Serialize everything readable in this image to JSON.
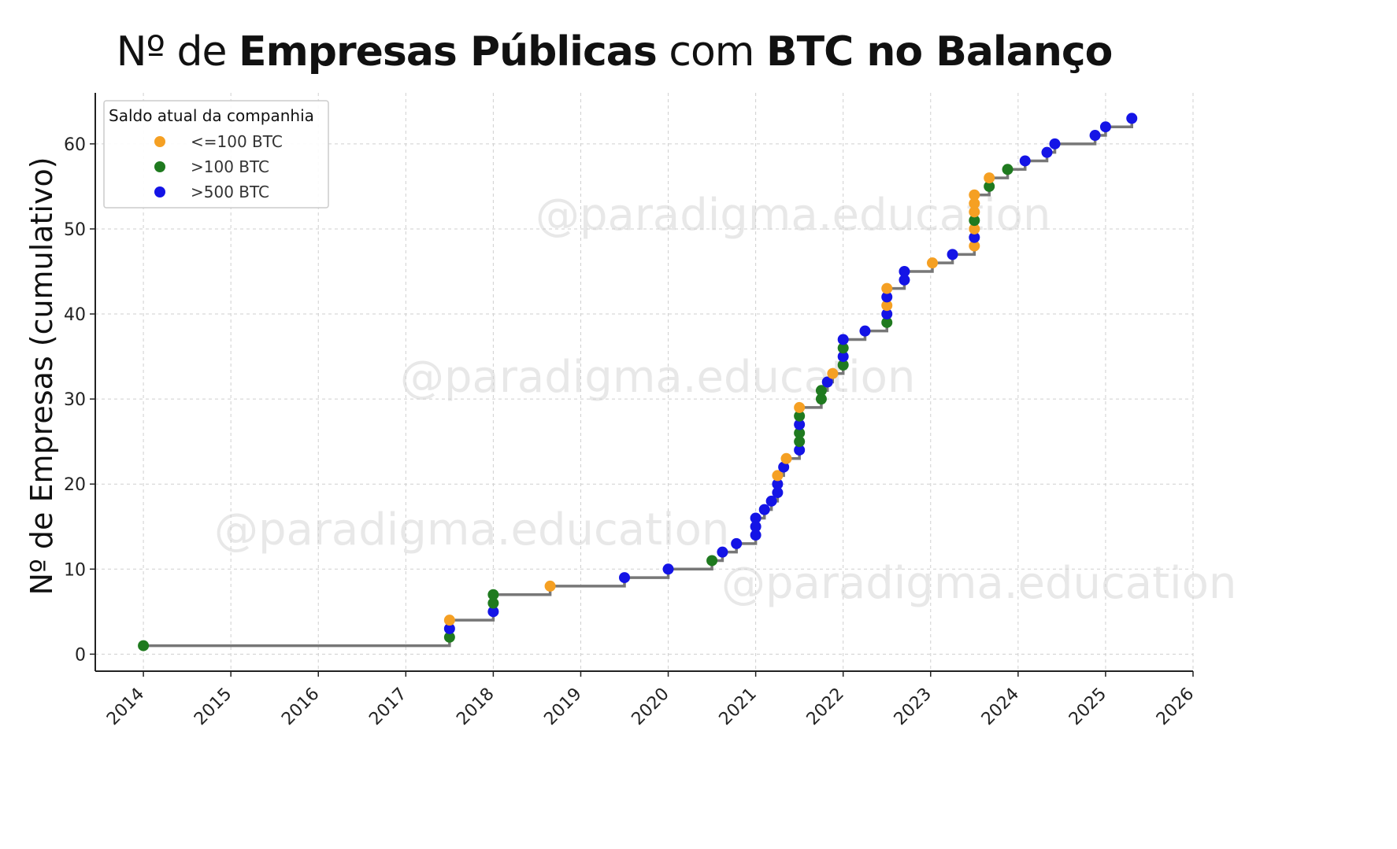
{
  "title": {
    "part1": "Nº de ",
    "part2": "Empresas Públicas",
    "part3": " com ",
    "part4": "BTC no Balanço"
  },
  "watermark": "@paradigma.education",
  "chart_data": {
    "type": "scatter",
    "title": "Nº de Empresas Públicas com BTC no Balanço",
    "xlabel": "",
    "ylabel": "Nº de Empresas (cumulativo)",
    "xlim": [
      2013.45,
      2026
    ],
    "ylim": [
      -2,
      66
    ],
    "xticks": [
      2014,
      2015,
      2016,
      2017,
      2018,
      2019,
      2020,
      2021,
      2022,
      2023,
      2024,
      2025,
      2026
    ],
    "yticks": [
      0,
      10,
      20,
      30,
      40,
      50,
      60
    ],
    "grid": true,
    "legend": {
      "title": "Saldo atual da companhia",
      "position": "top-left",
      "entries": [
        {
          "label": "<=100 BTC",
          "color": "#f5a023"
        },
        {
          "label": ">100 BTC",
          "color": "#1f7a1f"
        },
        {
          "label": ">500 BTC",
          "color": "#1414e6"
        }
      ]
    },
    "step_line_color": "#777777",
    "series": [
      {
        "name": "<=100 BTC",
        "color": "#f5a023",
        "points": [
          [
            2017.5,
            4
          ],
          [
            2018.65,
            8
          ],
          [
            2021.25,
            21
          ],
          [
            2021.35,
            23
          ],
          [
            2021.5,
            29
          ],
          [
            2021.88,
            33
          ],
          [
            2022.5,
            41
          ],
          [
            2022.5,
            43
          ],
          [
            2023.02,
            46
          ],
          [
            2023.5,
            48
          ],
          [
            2023.5,
            50
          ],
          [
            2023.5,
            52
          ],
          [
            2023.5,
            53
          ],
          [
            2023.5,
            54
          ],
          [
            2023.67,
            56
          ]
        ]
      },
      {
        "name": ">100 BTC",
        "color": "#1f7a1f",
        "points": [
          [
            2014.0,
            1
          ],
          [
            2017.5,
            2
          ],
          [
            2018.0,
            6
          ],
          [
            2018.0,
            7
          ],
          [
            2020.5,
            11
          ],
          [
            2021.5,
            25
          ],
          [
            2021.5,
            26
          ],
          [
            2021.5,
            28
          ],
          [
            2021.75,
            30
          ],
          [
            2021.75,
            31
          ],
          [
            2022.0,
            34
          ],
          [
            2022.0,
            36
          ],
          [
            2022.5,
            39
          ],
          [
            2023.5,
            51
          ],
          [
            2023.67,
            55
          ],
          [
            2023.88,
            57
          ]
        ]
      },
      {
        "name": ">500 BTC",
        "color": "#1414e6",
        "points": [
          [
            2017.5,
            3
          ],
          [
            2018.0,
            5
          ],
          [
            2019.5,
            9
          ],
          [
            2020.0,
            10
          ],
          [
            2020.62,
            12
          ],
          [
            2020.78,
            13
          ],
          [
            2021.0,
            14
          ],
          [
            2021.0,
            15
          ],
          [
            2021.0,
            16
          ],
          [
            2021.1,
            17
          ],
          [
            2021.18,
            18
          ],
          [
            2021.25,
            19
          ],
          [
            2021.25,
            20
          ],
          [
            2021.32,
            22
          ],
          [
            2021.5,
            24
          ],
          [
            2021.5,
            27
          ],
          [
            2021.82,
            32
          ],
          [
            2022.0,
            35
          ],
          [
            2022.0,
            37
          ],
          [
            2022.25,
            38
          ],
          [
            2022.5,
            40
          ],
          [
            2022.5,
            42
          ],
          [
            2022.7,
            44
          ],
          [
            2022.7,
            45
          ],
          [
            2023.25,
            47
          ],
          [
            2023.5,
            49
          ],
          [
            2024.08,
            58
          ],
          [
            2024.33,
            59
          ],
          [
            2024.42,
            60
          ],
          [
            2024.88,
            61
          ],
          [
            2025.0,
            62
          ],
          [
            2025.3,
            63
          ]
        ]
      }
    ]
  }
}
